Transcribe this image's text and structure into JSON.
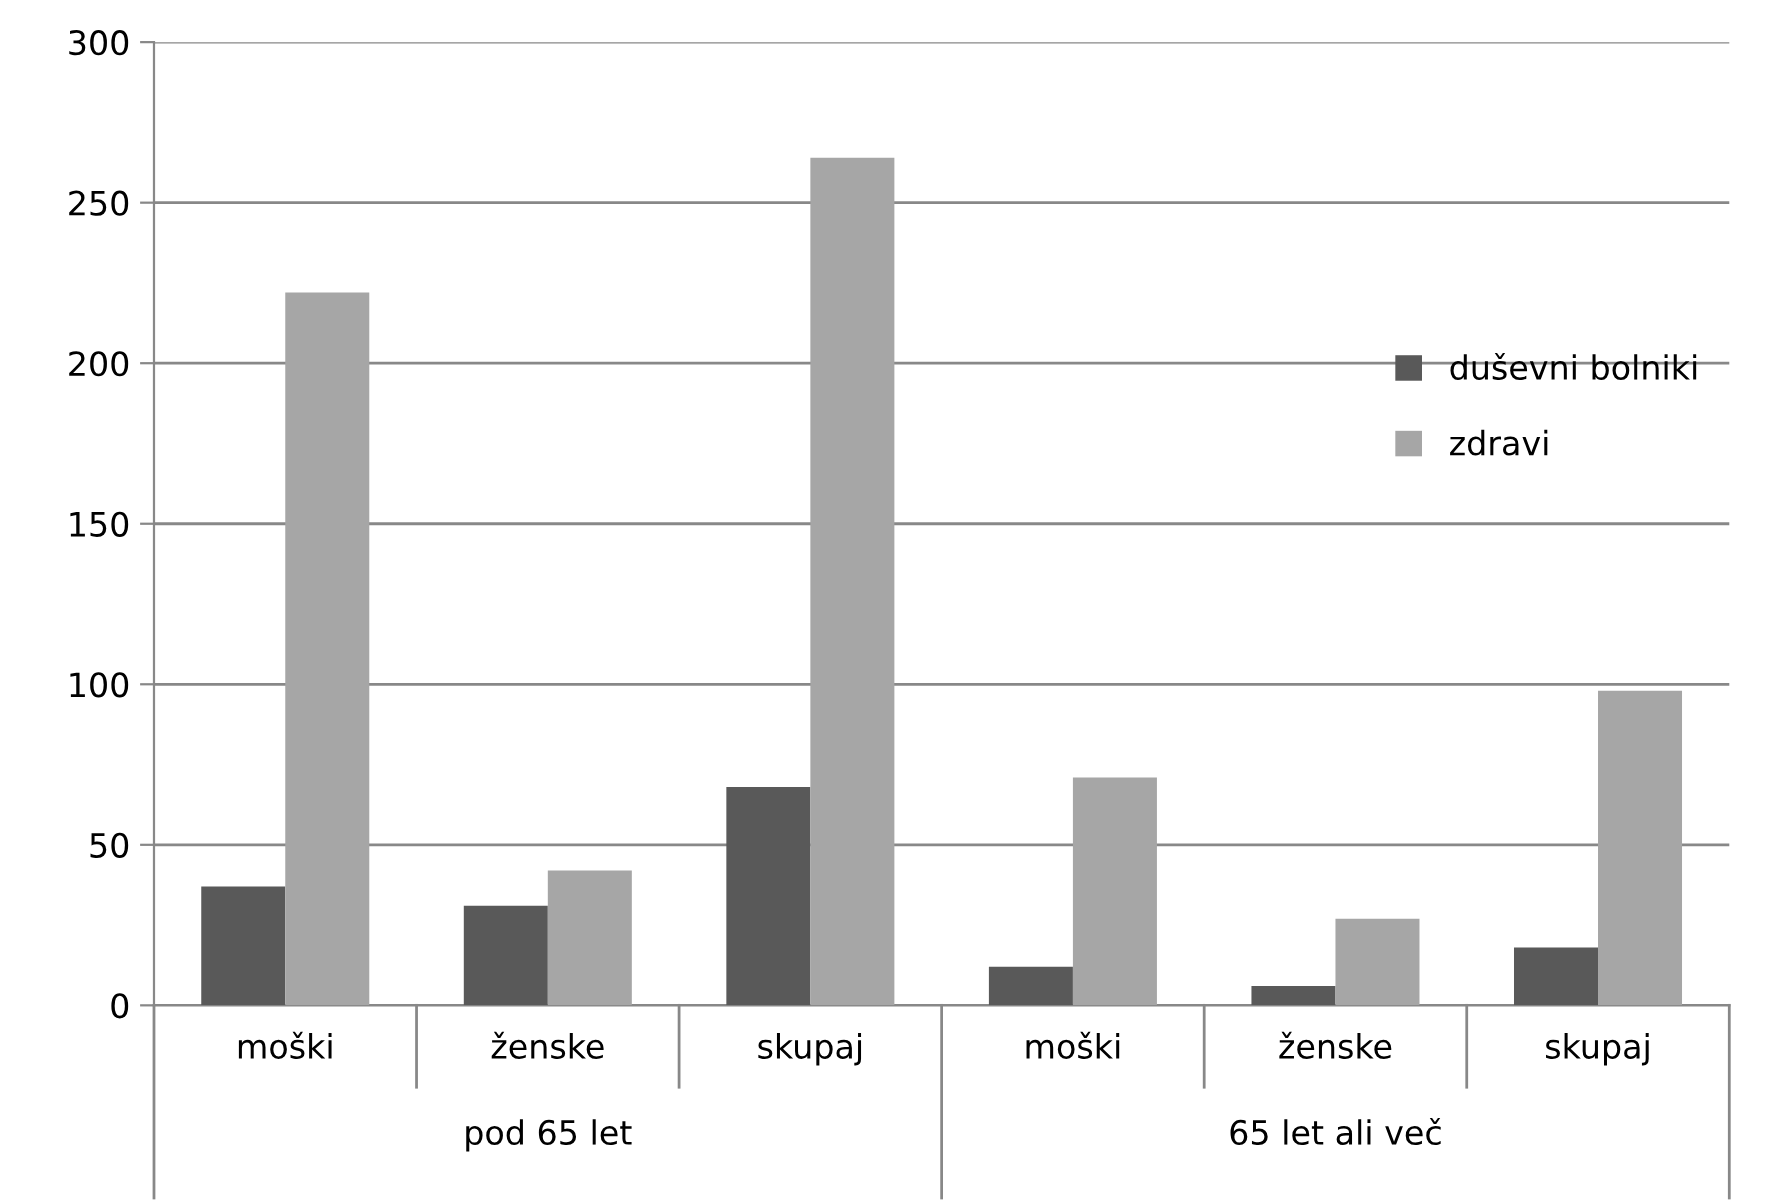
{
  "chart_data": {
    "type": "bar",
    "categories": [
      "moški",
      "ženske",
      "skupaj",
      "moški",
      "ženske",
      "skupaj"
    ],
    "annotations": [
      "pod 65 let",
      "65 let ali več"
    ],
    "series": [
      {
        "name": "duševni bolniki",
        "color": "#595959",
        "values": [
          37,
          31,
          68,
          12,
          6,
          18
        ]
      },
      {
        "name": "zdravi",
        "color": "#a6a6a6",
        "values": [
          222,
          42,
          264,
          71,
          27,
          98
        ]
      }
    ],
    "ylim": [
      0,
      300
    ],
    "yticks": [
      0,
      50,
      100,
      150,
      200,
      250,
      300
    ],
    "grid": "y",
    "legend": "right"
  }
}
